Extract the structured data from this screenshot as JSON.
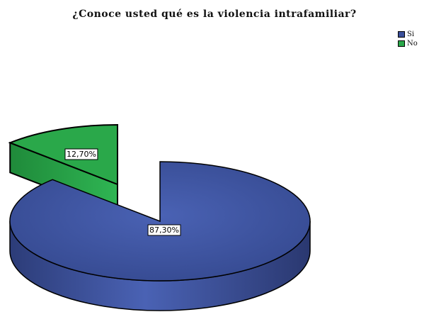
{
  "chart_data": {
    "type": "pie",
    "title": "¿Conoce usted qué es la violencia intrafamiliar?",
    "categories": [
      "Si",
      "No"
    ],
    "values": [
      87.3,
      12.7
    ],
    "data_labels": [
      "87,30%",
      "12,70%"
    ],
    "colors": [
      "#3a4f9a",
      "#2aa84a"
    ],
    "legend_position": "top-right",
    "exploded": "No",
    "style": "3d"
  }
}
